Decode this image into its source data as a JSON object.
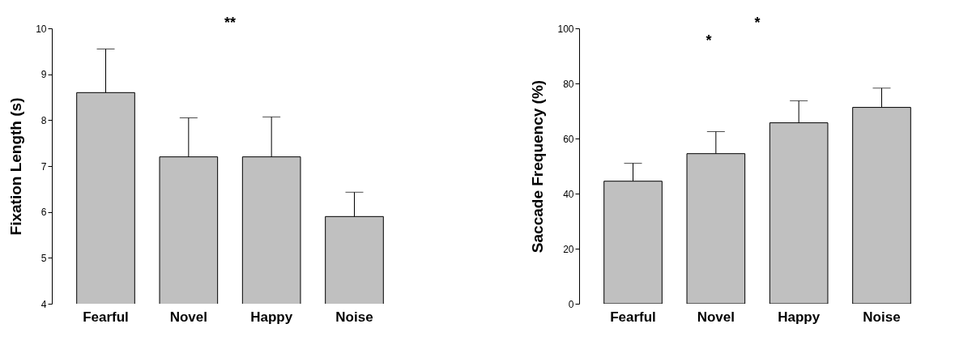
{
  "chart_data": [
    {
      "type": "bar",
      "categories": [
        "Fearful",
        "Novel",
        "Happy",
        "Noise"
      ],
      "ylabel": "Fixation Length (s)",
      "color": "#c0c0c0",
      "values": [
        8.6,
        7.2,
        7.2,
        5.9
      ],
      "errors": [
        [
          8.6,
          9.55
        ],
        [
          7.2,
          8.05
        ],
        [
          7.2,
          8.07
        ],
        [
          5.9,
          6.43
        ]
      ],
      "ylim": [
        4,
        10
      ],
      "yticks": [
        4,
        5,
        6,
        7,
        8,
        9,
        10
      ],
      "annotations": [
        "**"
      ]
    },
    {
      "type": "bar",
      "categories": [
        "Fearful",
        "Novel",
        "Happy",
        "Noise"
      ],
      "ylabel": "Saccade Frequency (%)",
      "color": "#c0c0c0",
      "values": [
        44.5,
        54.5,
        65.7,
        71.3
      ],
      "errors": [
        [
          44.5,
          51
        ],
        [
          54.5,
          62.5
        ],
        [
          65.7,
          73.7
        ],
        [
          71.3,
          78.3
        ]
      ],
      "ylim": [
        0,
        100
      ],
      "yticks": [
        0,
        20,
        40,
        60,
        80,
        100
      ],
      "annotations": [
        "*",
        "*"
      ]
    }
  ]
}
